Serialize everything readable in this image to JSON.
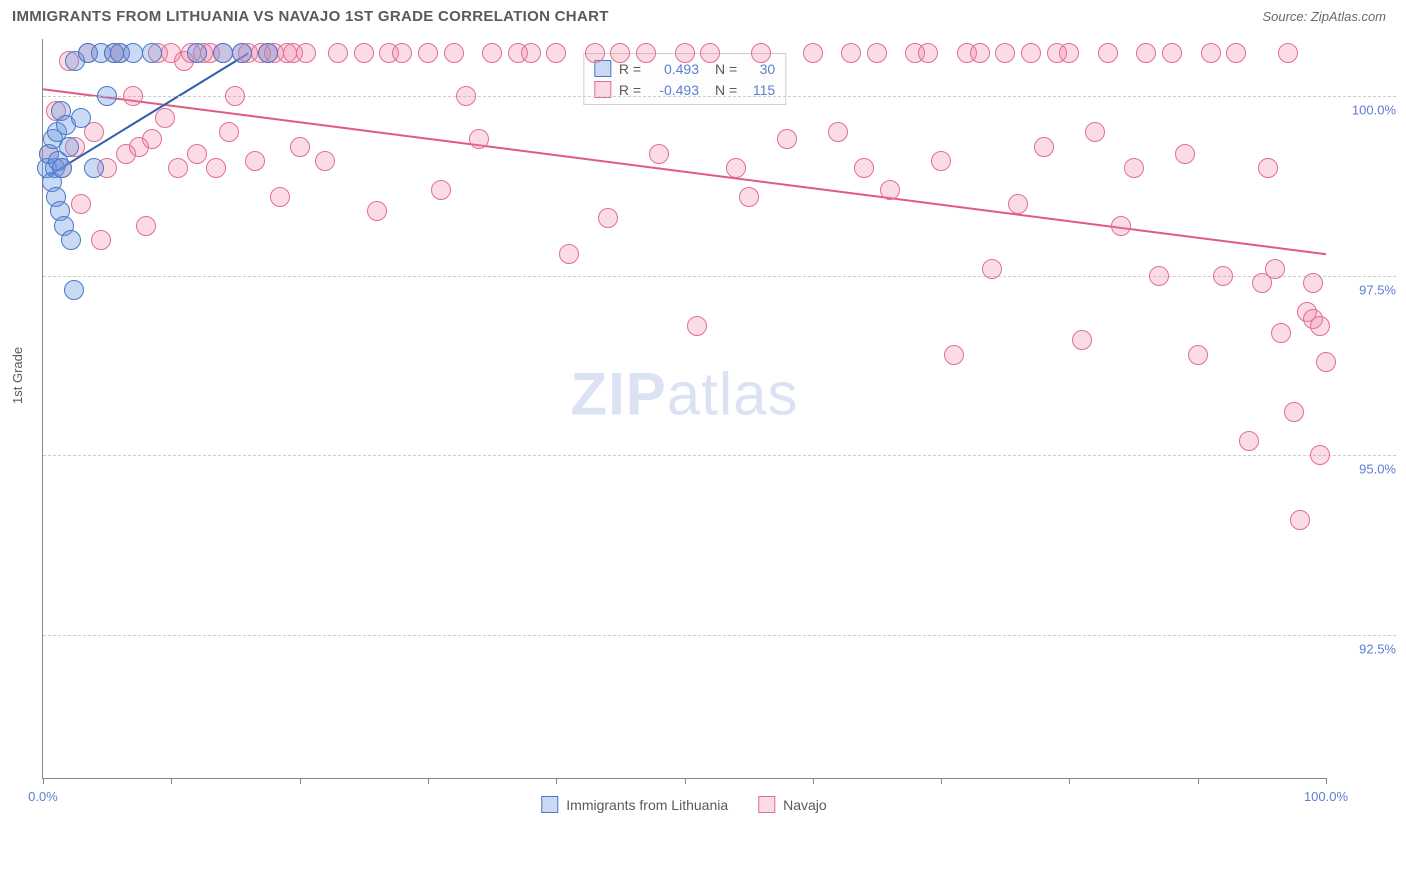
{
  "title": "IMMIGRANTS FROM LITHUANIA VS NAVAJO 1ST GRADE CORRELATION CHART",
  "source": "Source: ZipAtlas.com",
  "y_axis_label": "1st Grade",
  "watermark_bold": "ZIP",
  "watermark_light": "atlas",
  "chart": {
    "type": "scatter",
    "xlim": [
      0,
      100
    ],
    "ylim": [
      90.5,
      100.8
    ],
    "y_ticks": [
      {
        "v": 100.0,
        "label": "100.0%"
      },
      {
        "v": 97.5,
        "label": "97.5%"
      },
      {
        "v": 95.0,
        "label": "95.0%"
      },
      {
        "v": 92.5,
        "label": "92.5%"
      }
    ],
    "x_ticks": [
      0,
      10,
      20,
      30,
      40,
      50,
      60,
      70,
      80,
      90,
      100
    ],
    "x_tick_labels": [
      {
        "v": 0,
        "label": "0.0%"
      },
      {
        "v": 100,
        "label": "100.0%"
      }
    ],
    "grid_color": "#cccccc",
    "axis_color": "#888888",
    "background_color": "#ffffff",
    "tick_label_color": "#5b7fd1",
    "marker_radius": 10,
    "marker_stroke_width": 1.2,
    "series": {
      "lithuania": {
        "label": "Immigrants from Lithuania",
        "fill": "rgba(103,148,224,0.35)",
        "stroke": "#4a78c8",
        "R": 0.493,
        "N": 30,
        "trend": {
          "x1": 0.5,
          "y1": 98.9,
          "x2": 16,
          "y2": 100.6,
          "color": "#2e5db0",
          "width": 2
        },
        "points": [
          [
            0.3,
            99.0
          ],
          [
            0.5,
            99.2
          ],
          [
            0.7,
            98.8
          ],
          [
            0.8,
            99.4
          ],
          [
            0.9,
            99.0
          ],
          [
            1.0,
            98.6
          ],
          [
            1.1,
            99.5
          ],
          [
            1.2,
            99.1
          ],
          [
            1.3,
            98.4
          ],
          [
            1.4,
            99.8
          ],
          [
            1.5,
            99.0
          ],
          [
            1.6,
            98.2
          ],
          [
            1.8,
            99.6
          ],
          [
            2.0,
            99.3
          ],
          [
            2.2,
            98.0
          ],
          [
            2.4,
            97.3
          ],
          [
            2.5,
            100.5
          ],
          [
            3.0,
            99.7
          ],
          [
            3.5,
            100.6
          ],
          [
            4.0,
            99.0
          ],
          [
            4.5,
            100.6
          ],
          [
            5.0,
            100.0
          ],
          [
            5.5,
            100.6
          ],
          [
            6.0,
            100.6
          ],
          [
            7.0,
            100.6
          ],
          [
            8.5,
            100.6
          ],
          [
            12.0,
            100.6
          ],
          [
            14.0,
            100.6
          ],
          [
            15.5,
            100.6
          ],
          [
            17.5,
            100.6
          ]
        ]
      },
      "navajo": {
        "label": "Navajo",
        "fill": "rgba(240,130,160,0.28)",
        "stroke": "#e26f93",
        "R": -0.493,
        "N": 115,
        "trend": {
          "x1": 0,
          "y1": 100.1,
          "x2": 100,
          "y2": 97.8,
          "color": "#e05a85",
          "width": 2
        },
        "points": [
          [
            0.5,
            99.2
          ],
          [
            1,
            99.8
          ],
          [
            1.5,
            99.0
          ],
          [
            2,
            100.5
          ],
          [
            2.5,
            99.3
          ],
          [
            3,
            98.5
          ],
          [
            3.5,
            100.6
          ],
          [
            4,
            99.5
          ],
          [
            4.5,
            98.0
          ],
          [
            5,
            99.0
          ],
          [
            5.5,
            100.6
          ],
          [
            6,
            100.6
          ],
          [
            6.5,
            99.2
          ],
          [
            7,
            100.0
          ],
          [
            7.5,
            99.3
          ],
          [
            8,
            98.2
          ],
          [
            8.5,
            99.4
          ],
          [
            9,
            100.6
          ],
          [
            9.5,
            99.7
          ],
          [
            10,
            100.6
          ],
          [
            10.5,
            99.0
          ],
          [
            11,
            100.5
          ],
          [
            11.5,
            100.6
          ],
          [
            12,
            99.2
          ],
          [
            12.5,
            100.6
          ],
          [
            13,
            100.6
          ],
          [
            13.5,
            99.0
          ],
          [
            14,
            100.6
          ],
          [
            14.5,
            99.5
          ],
          [
            15,
            100.0
          ],
          [
            15.5,
            100.6
          ],
          [
            16,
            100.6
          ],
          [
            16.5,
            99.1
          ],
          [
            17,
            100.6
          ],
          [
            17.5,
            100.6
          ],
          [
            18,
            100.6
          ],
          [
            18.5,
            98.6
          ],
          [
            19,
            100.6
          ],
          [
            19.5,
            100.6
          ],
          [
            20,
            99.3
          ],
          [
            20.5,
            100.6
          ],
          [
            22,
            99.1
          ],
          [
            23,
            100.6
          ],
          [
            25,
            100.6
          ],
          [
            26,
            98.4
          ],
          [
            27,
            100.6
          ],
          [
            28,
            100.6
          ],
          [
            30,
            100.6
          ],
          [
            31,
            98.7
          ],
          [
            32,
            100.6
          ],
          [
            33,
            100.0
          ],
          [
            34,
            99.4
          ],
          [
            35,
            100.6
          ],
          [
            37,
            100.6
          ],
          [
            38,
            100.6
          ],
          [
            40,
            100.6
          ],
          [
            41,
            97.8
          ],
          [
            43,
            100.6
          ],
          [
            44,
            98.3
          ],
          [
            45,
            100.6
          ],
          [
            47,
            100.6
          ],
          [
            48,
            99.2
          ],
          [
            50,
            100.6
          ],
          [
            51,
            96.8
          ],
          [
            52,
            100.6
          ],
          [
            54,
            99.0
          ],
          [
            55,
            98.6
          ],
          [
            56,
            100.6
          ],
          [
            58,
            99.4
          ],
          [
            60,
            100.6
          ],
          [
            62,
            99.5
          ],
          [
            63,
            100.6
          ],
          [
            64,
            99.0
          ],
          [
            65,
            100.6
          ],
          [
            66,
            98.7
          ],
          [
            68,
            100.6
          ],
          [
            69,
            100.6
          ],
          [
            70,
            99.1
          ],
          [
            71,
            96.4
          ],
          [
            72,
            100.6
          ],
          [
            73,
            100.6
          ],
          [
            74,
            97.6
          ],
          [
            75,
            100.6
          ],
          [
            76,
            98.5
          ],
          [
            77,
            100.6
          ],
          [
            78,
            99.3
          ],
          [
            79,
            100.6
          ],
          [
            80,
            100.6
          ],
          [
            81,
            96.6
          ],
          [
            82,
            99.5
          ],
          [
            83,
            100.6
          ],
          [
            84,
            98.2
          ],
          [
            85,
            99.0
          ],
          [
            86,
            100.6
          ],
          [
            87,
            97.5
          ],
          [
            88,
            100.6
          ],
          [
            89,
            99.2
          ],
          [
            90,
            96.4
          ],
          [
            91,
            100.6
          ],
          [
            92,
            97.5
          ],
          [
            93,
            100.6
          ],
          [
            94,
            95.2
          ],
          [
            95,
            97.4
          ],
          [
            95.5,
            99.0
          ],
          [
            96,
            97.6
          ],
          [
            96.5,
            96.7
          ],
          [
            97,
            100.6
          ],
          [
            97.5,
            95.6
          ],
          [
            98,
            94.1
          ],
          [
            98.5,
            97.0
          ],
          [
            99,
            97.4
          ],
          [
            99,
            96.9
          ],
          [
            99.5,
            96.8
          ],
          [
            99.5,
            95.0
          ],
          [
            100,
            96.3
          ]
        ]
      }
    }
  },
  "legend_stats_rows": [
    {
      "key": "lithuania"
    },
    {
      "key": "navajo"
    }
  ],
  "labels": {
    "R": "R =",
    "N": "N ="
  }
}
